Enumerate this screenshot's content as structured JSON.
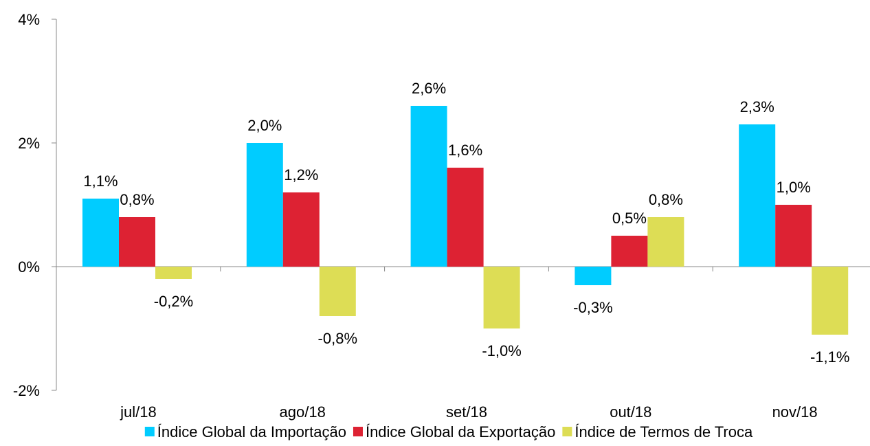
{
  "chart_data": {
    "type": "bar",
    "categories": [
      "jul/18",
      "ago/18",
      "set/18",
      "out/18",
      "nov/18"
    ],
    "series": [
      {
        "name": "Índice Global da Importação",
        "color": "#00CCFF",
        "values": [
          1.1,
          2.0,
          2.6,
          -0.3,
          2.3
        ],
        "labels": [
          "1,1%",
          "2,0%",
          "2,6%",
          "-0,3%",
          "2,3%"
        ]
      },
      {
        "name": "Índice Global da Exportação",
        "color": "#DD2233",
        "values": [
          0.8,
          1.2,
          1.6,
          0.5,
          1.0
        ],
        "labels": [
          "0,8%",
          "1,2%",
          "1,6%",
          "0,5%",
          "1,0%"
        ]
      },
      {
        "name": "Índice de Termos de Troca",
        "color": "#DDDD55",
        "values": [
          -0.2,
          -0.8,
          -1.0,
          0.8,
          -1.1
        ],
        "labels": [
          "-0,2%",
          "-0,8%",
          "-1,0%",
          "0,8%",
          "-1,1%"
        ]
      }
    ],
    "ylim": [
      -2,
      4
    ],
    "yticks": [
      -2,
      0,
      2,
      4
    ],
    "ytick_labels": [
      "-2%",
      "0%",
      "2%",
      "4%"
    ],
    "title": "",
    "xlabel": "",
    "ylabel": "",
    "grid": false,
    "legend_position": "bottom"
  }
}
